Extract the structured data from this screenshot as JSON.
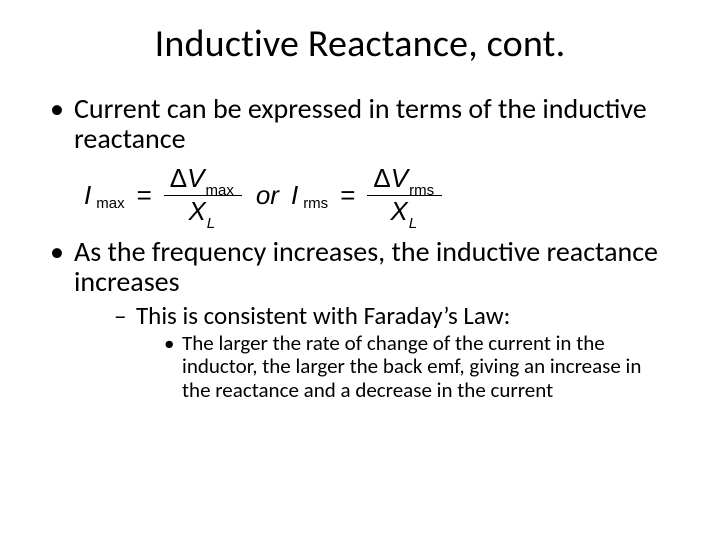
{
  "title": "Inductive Reactance, cont.",
  "bullet1": "Current can be expressed in terms of the inductive reactance",
  "eq": {
    "I": "I",
    "max": "max",
    "rms": "rms",
    "eq": "=",
    "delta": "Δ",
    "V": "V",
    "X": "X",
    "L": "L",
    "or": "or"
  },
  "bullet2": "As the frequency increases, the inductive reactance increases",
  "sub1": "This is consistent with Faraday’s Law:",
  "sub2": "The larger the rate of change of the current in the inductor, the larger the back emf, giving an increase in the reactance and a decrease in the current",
  "colors": {
    "bg": "#ffffff",
    "text": "#000000"
  },
  "fontsizes": {
    "title": 38,
    "lvl1": 28,
    "lvl2": 25,
    "lvl3": 21,
    "eq": 26
  }
}
